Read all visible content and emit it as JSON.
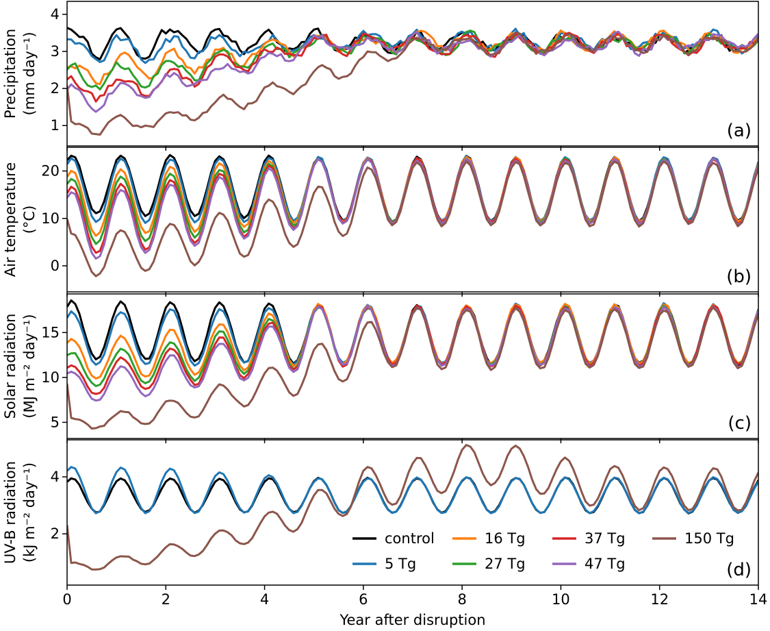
{
  "colors": {
    "control": "#000000",
    "5 Tg": "#1f77b4",
    "16 Tg": "#ff7f0e",
    "27 Tg": "#2ca02c",
    "37 Tg": "#d62728",
    "47 Tg": "#9467bd",
    "150 Tg": "#8c564b"
  },
  "chart_data": [
    {
      "type": "line",
      "panel": "a",
      "panel_label": "(a)",
      "ylabel": [
        "Precipitation",
        "(mm day⁻¹)"
      ],
      "xlim": [
        0,
        14
      ],
      "ylim": [
        0.45,
        4.35
      ],
      "yticks": [
        1,
        2,
        3,
        4
      ],
      "series": [
        {
          "name": "control",
          "mean0": 3.25,
          "mean1": 3.25,
          "amp0": 0.35,
          "amp1": 0.2,
          "decay": 5,
          "noise": 0.28,
          "phase": 0.1
        },
        {
          "name": "5 Tg",
          "mean0": 3.05,
          "mean1": 3.25,
          "amp0": 0.3,
          "amp1": 0.2,
          "decay": 5,
          "noise": 0.26,
          "phase": 0.1
        },
        {
          "name": "16 Tg",
          "mean0": 2.45,
          "mean1": 3.25,
          "amp0": 0.3,
          "amp1": 0.2,
          "decay": 5,
          "noise": 0.24,
          "phase": 0.1
        },
        {
          "name": "27 Tg",
          "mean0": 2.25,
          "mean1": 3.2,
          "amp0": 0.3,
          "amp1": 0.2,
          "decay": 5,
          "noise": 0.24,
          "phase": 0.1
        },
        {
          "name": "37 Tg",
          "mean0": 1.95,
          "mean1": 3.2,
          "amp0": 0.3,
          "amp1": 0.2,
          "decay": 5,
          "noise": 0.24,
          "phase": 0.1
        },
        {
          "name": "47 Tg",
          "mean0": 1.75,
          "mean1": 3.2,
          "amp0": 0.3,
          "amp1": 0.2,
          "decay": 5,
          "noise": 0.24,
          "phase": 0.1
        },
        {
          "name": "150 Tg",
          "mean0": 0.9,
          "mean1": 3.2,
          "amp0": 0.2,
          "amp1": 0.2,
          "decay": 7,
          "noise": 0.18,
          "phase": 0.1
        }
      ]
    },
    {
      "type": "line",
      "panel": "b",
      "panel_label": "(b)",
      "ylabel": [
        "Air temperature",
        "(°C)"
      ],
      "xlim": [
        0,
        14
      ],
      "ylim": [
        -5.5,
        25
      ],
      "yticks": [
        0,
        10,
        20
      ],
      "series": [
        {
          "name": "control",
          "mean0": 17.2,
          "mean1": 16.2,
          "amp0": 6.2,
          "amp1": 6.8,
          "decay": 5,
          "noise": 0.4,
          "phase": 0.1
        },
        {
          "name": "5 Tg",
          "mean0": 15.8,
          "mean1": 16.2,
          "amp0": 6.8,
          "amp1": 6.8,
          "decay": 5,
          "noise": 0.4,
          "phase": 0.1
        },
        {
          "name": "16 Tg",
          "mean0": 13.2,
          "mean1": 16.0,
          "amp0": 7.0,
          "amp1": 6.8,
          "decay": 5,
          "noise": 0.4,
          "phase": 0.1
        },
        {
          "name": "27 Tg",
          "mean0": 11.5,
          "mean1": 15.8,
          "amp0": 7.0,
          "amp1": 6.8,
          "decay": 5,
          "noise": 0.4,
          "phase": 0.1
        },
        {
          "name": "37 Tg",
          "mean0": 9.5,
          "mean1": 15.8,
          "amp0": 7.2,
          "amp1": 6.8,
          "decay": 5,
          "noise": 0.4,
          "phase": 0.1
        },
        {
          "name": "47 Tg",
          "mean0": 8.5,
          "mean1": 15.6,
          "amp0": 7.2,
          "amp1": 6.8,
          "decay": 5,
          "noise": 0.4,
          "phase": 0.1
        },
        {
          "name": "150 Tg",
          "mean0": 2.2,
          "mean1": 15.2,
          "amp0": 4.5,
          "amp1": 6.8,
          "decay": 6.5,
          "noise": 0.5,
          "phase": 0.1
        }
      ]
    },
    {
      "type": "line",
      "panel": "c",
      "panel_label": "(c)",
      "ylabel": [
        "Solar radiation",
        "(MJ m⁻² day⁻¹)"
      ],
      "xlim": [
        0,
        14
      ],
      "ylim": [
        3.2,
        19.3
      ],
      "yticks": [
        5,
        10,
        15
      ],
      "series": [
        {
          "name": "control",
          "mean0": 15.2,
          "mean1": 14.8,
          "amp0": 3.3,
          "amp1": 3.3,
          "decay": 5,
          "noise": 0.3,
          "phase": 0.1
        },
        {
          "name": "5 Tg",
          "mean0": 14.3,
          "mean1": 14.8,
          "amp0": 3.0,
          "amp1": 3.3,
          "decay": 5,
          "noise": 0.3,
          "phase": 0.1
        },
        {
          "name": "16 Tg",
          "mean0": 12.0,
          "mean1": 14.8,
          "amp0": 2.3,
          "amp1": 3.3,
          "decay": 5,
          "noise": 0.3,
          "phase": 0.1
        },
        {
          "name": "27 Tg",
          "mean0": 10.8,
          "mean1": 14.6,
          "amp0": 1.9,
          "amp1": 3.3,
          "decay": 5,
          "noise": 0.3,
          "phase": 0.1
        },
        {
          "name": "37 Tg",
          "mean0": 9.8,
          "mean1": 14.6,
          "amp0": 1.7,
          "amp1": 3.3,
          "decay": 5,
          "noise": 0.3,
          "phase": 0.1
        },
        {
          "name": "47 Tg",
          "mean0": 9.0,
          "mean1": 14.5,
          "amp0": 1.6,
          "amp1": 3.3,
          "decay": 5,
          "noise": 0.3,
          "phase": 0.1
        },
        {
          "name": "150 Tg",
          "mean0": 4.8,
          "mean1": 14.3,
          "amp0": 0.7,
          "amp1": 3.3,
          "decay": 6.5,
          "noise": 0.3,
          "phase": 0.1
        }
      ]
    },
    {
      "type": "line",
      "panel": "d",
      "panel_label": "(d)",
      "ylabel": [
        "UV-B radiation",
        "(kJ m⁻² day⁻¹)"
      ],
      "xlim": [
        0,
        14
      ],
      "ylim": [
        0.2,
        5.3
      ],
      "yticks": [
        2,
        4
      ],
      "series": [
        {
          "name": "control",
          "mean0": 3.35,
          "mean1": 3.35,
          "amp0": 0.6,
          "amp1": 0.62,
          "decay": 5,
          "noise": 0.04,
          "phase": 0.1
        },
        {
          "name": "5 Tg",
          "mean0": 3.55,
          "mean1": 3.35,
          "amp0": 0.82,
          "amp1": 0.62,
          "decay": 5,
          "noise": 0.04,
          "phase": 0.1
        },
        {
          "name": "150 Tg",
          "mean0": 0.85,
          "mean1": 3.55,
          "amp0": 0.15,
          "amp1": 0.75,
          "decay": 6,
          "noise": 0.06,
          "phase": 0.1,
          "overshoot": 0.9
        }
      ]
    }
  ],
  "legend": {
    "entries": [
      "control",
      "16 Tg",
      "37 Tg",
      "150 Tg",
      "5 Tg",
      "27 Tg",
      "47 Tg"
    ],
    "placement": "lower-right of panel d"
  },
  "xaxis": {
    "label": "Year after disruption",
    "ticks": [
      0,
      2,
      4,
      6,
      8,
      10,
      12,
      14
    ]
  }
}
